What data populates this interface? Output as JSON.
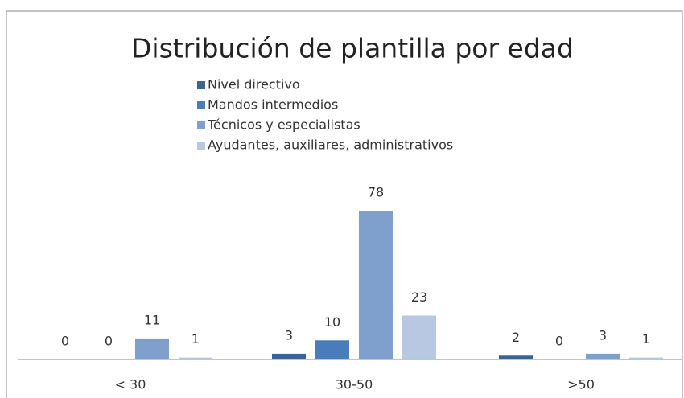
{
  "chart_data": {
    "type": "bar",
    "title": "Distribución de plantilla por edad",
    "categories": [
      "< 30",
      "30-50",
      ">50"
    ],
    "series": [
      {
        "name": "Nivel directivo",
        "color": "#3b6395",
        "values": [
          0,
          3,
          2
        ]
      },
      {
        "name": "Mandos intermedios",
        "color": "#4a7cb9",
        "values": [
          0,
          10,
          0
        ]
      },
      {
        "name": "Técnicos y especialistas",
        "color": "#7f9fcc",
        "values": [
          11,
          78,
          3
        ]
      },
      {
        "name": "Ayudantes, auxiliares, administrativos",
        "color": "#b8c8e2",
        "values": [
          1,
          23,
          1
        ]
      }
    ]
  }
}
